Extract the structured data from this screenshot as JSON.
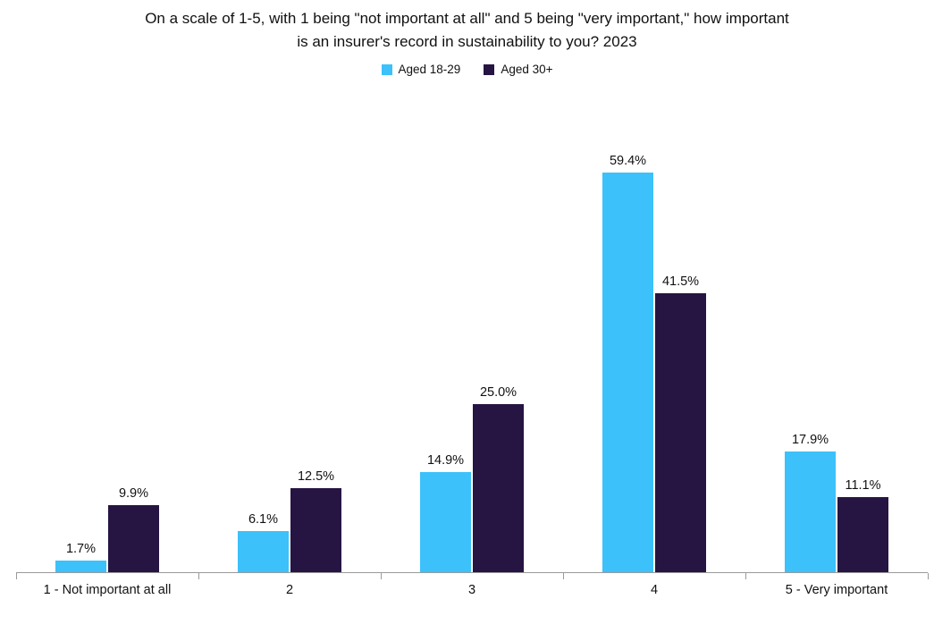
{
  "chart_data": {
    "type": "bar",
    "title": "On a scale of 1-5, with 1 being \"not important at all\" and 5 being \"very important,\" how important is an insurer's record in sustainability to you? 2023",
    "title_lines": [
      "On a scale of 1-5, with 1 being \"not important at all\" and 5 being \"very important,\" how important",
      "is an insurer's record in sustainability to you? 2023"
    ],
    "categories": [
      "1 - Not important at all",
      "2",
      "3",
      "4",
      "5 - Very important"
    ],
    "series": [
      {
        "name": "Aged 18-29",
        "color": "#3CC1FA",
        "values": [
          1.7,
          6.1,
          14.9,
          59.4,
          17.9
        ]
      },
      {
        "name": "Aged 30+",
        "color": "#261443",
        "values": [
          9.9,
          12.5,
          25.0,
          41.5,
          11.1
        ]
      }
    ],
    "data_labels": [
      [
        "1.7%",
        "6.1%",
        "14.9%",
        "59.4%",
        "17.9%"
      ],
      [
        "9.9%",
        "12.5%",
        "25.0%",
        "41.5%",
        "11.1%"
      ]
    ],
    "value_suffix": "%",
    "xlabel": "",
    "ylabel": "",
    "ylim": [
      0,
      65
    ],
    "grid": false,
    "legend_position": "top",
    "y_axis_visible": false,
    "axis_color": "#9a9a9a",
    "text_color": "#111111"
  }
}
